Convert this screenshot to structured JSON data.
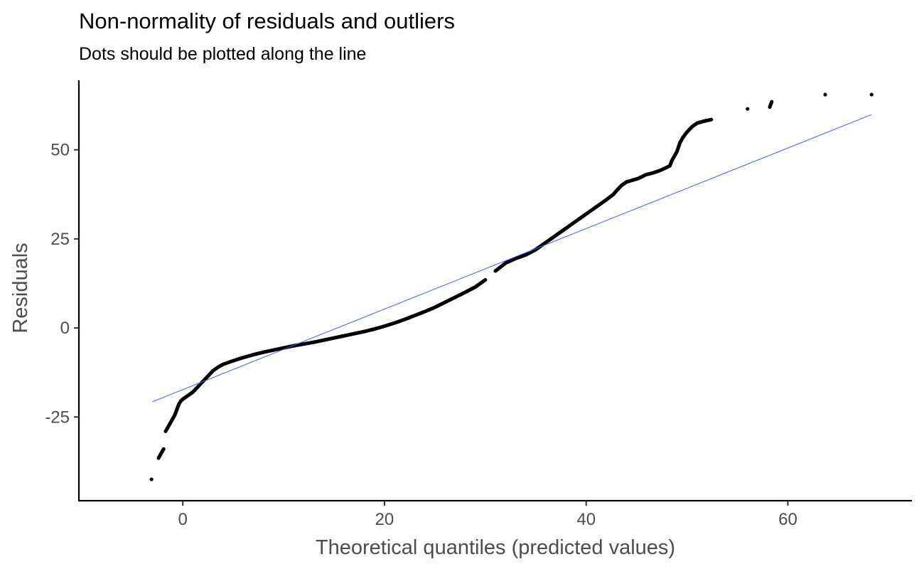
{
  "chart_data": {
    "type": "scatter",
    "title": "Non-normality of residuals and outliers",
    "subtitle": "Dots should be plotted along the line",
    "xlabel": "Theoretical quantiles (predicted values)",
    "ylabel": "Residuals",
    "xlim": [
      -10.3,
      72.3
    ],
    "ylim": [
      -48.5,
      69.5
    ],
    "xticks": [
      0,
      20,
      40,
      60
    ],
    "yticks": [
      -25,
      0,
      25,
      50
    ],
    "xtick_labels": [
      "0",
      "20",
      "40",
      "60"
    ],
    "ytick_labels": [
      "-25",
      "0",
      "25",
      "50"
    ],
    "grid": false,
    "point_color": "#000000",
    "line_color": "#3366ff",
    "reference_line": {
      "x": [
        -3.0,
        68.3
      ],
      "y": [
        -20.7,
        59.9
      ]
    },
    "series": [
      {
        "points": [
          [
            -3.1,
            -42.5
          ],
          [
            -2.4,
            -36.5
          ],
          [
            -1.9,
            -34.0
          ],
          [
            -1.7,
            -29.0
          ],
          [
            -1.5,
            -28.0
          ],
          [
            -1.2,
            -26.5
          ],
          [
            -1.0,
            -25.5
          ],
          [
            -0.8,
            -24.5
          ],
          [
            -0.6,
            -23.0
          ],
          [
            -0.4,
            -21.5
          ],
          [
            -0.2,
            -20.5
          ],
          [
            0.0,
            -20.0
          ],
          [
            0.5,
            -19.0
          ],
          [
            1.0,
            -18.0
          ],
          [
            1.5,
            -16.5
          ],
          [
            2.0,
            -15.0
          ],
          [
            2.5,
            -13.5
          ],
          [
            3.0,
            -12.0
          ],
          [
            3.5,
            -11.0
          ],
          [
            4.0,
            -10.2
          ],
          [
            4.5,
            -9.7
          ],
          [
            5.0,
            -9.2
          ],
          [
            6.0,
            -8.3
          ],
          [
            7.0,
            -7.5
          ],
          [
            8.0,
            -6.8
          ],
          [
            9.0,
            -6.2
          ],
          [
            10.0,
            -5.6
          ],
          [
            11.0,
            -5.0
          ],
          [
            12.0,
            -4.5
          ],
          [
            13.0,
            -4.0
          ],
          [
            14.0,
            -3.4
          ],
          [
            15.0,
            -2.8
          ],
          [
            16.0,
            -2.2
          ],
          [
            17.0,
            -1.6
          ],
          [
            18.0,
            -1.0
          ],
          [
            19.0,
            -0.3
          ],
          [
            20.0,
            0.5
          ],
          [
            21.0,
            1.4
          ],
          [
            22.0,
            2.4
          ],
          [
            23.0,
            3.5
          ],
          [
            24.0,
            4.6
          ],
          [
            25.0,
            5.8
          ],
          [
            26.0,
            7.2
          ],
          [
            27.0,
            8.6
          ],
          [
            28.0,
            10.0
          ],
          [
            29.0,
            11.5
          ],
          [
            30.0,
            13.5
          ],
          [
            31.0,
            16.0
          ],
          [
            32.0,
            18.2
          ],
          [
            33.0,
            19.5
          ],
          [
            34.0,
            20.5
          ],
          [
            35.0,
            22.0
          ],
          [
            36.0,
            24.0
          ],
          [
            37.0,
            26.0
          ],
          [
            38.0,
            28.0
          ],
          [
            39.0,
            30.0
          ],
          [
            40.0,
            32.0
          ],
          [
            41.0,
            34.0
          ],
          [
            42.0,
            36.0
          ],
          [
            42.7,
            37.5
          ],
          [
            43.0,
            38.5
          ],
          [
            43.5,
            40.0
          ],
          [
            44.0,
            41.0
          ],
          [
            44.6,
            41.5
          ],
          [
            45.2,
            42.0
          ],
          [
            45.9,
            43.0
          ],
          [
            46.6,
            43.5
          ],
          [
            47.4,
            44.3
          ],
          [
            48.3,
            45.5
          ],
          [
            48.5,
            47.0
          ],
          [
            49.0,
            49.5
          ],
          [
            49.3,
            52.0
          ],
          [
            49.6,
            53.5
          ],
          [
            50.0,
            55.0
          ],
          [
            50.5,
            56.5
          ],
          [
            51.0,
            57.5
          ],
          [
            51.6,
            58.0
          ],
          [
            52.4,
            58.5
          ],
          [
            56.0,
            61.5
          ],
          [
            58.2,
            62.0
          ],
          [
            58.4,
            63.5
          ],
          [
            63.7,
            65.5
          ],
          [
            68.3,
            65.5
          ]
        ]
      }
    ]
  }
}
